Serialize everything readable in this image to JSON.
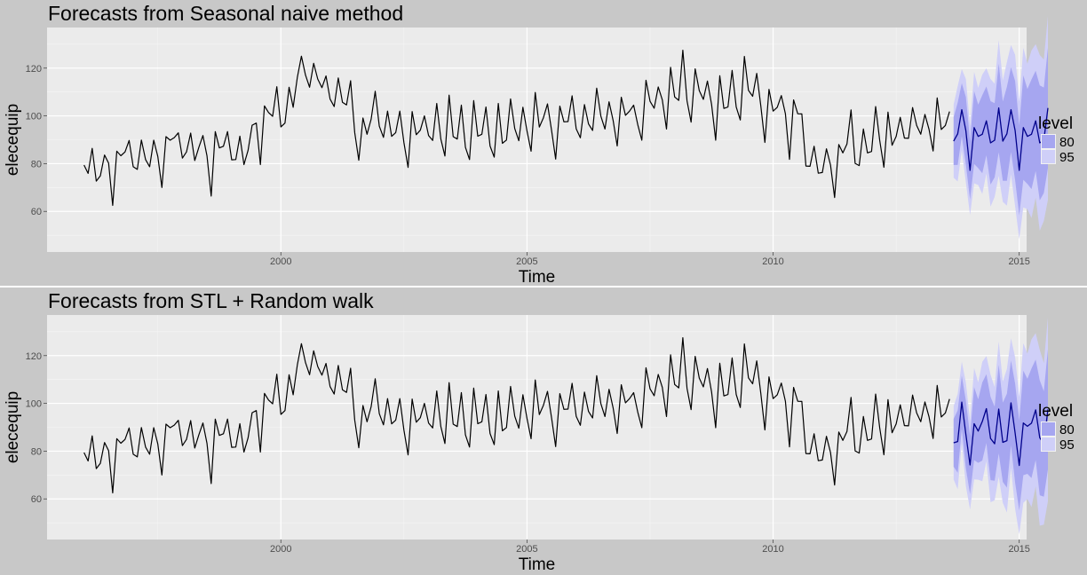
{
  "colors": {
    "background": "#c8c8c8",
    "panel": "#ebebeb",
    "grid": "#ffffff",
    "series": "#000000",
    "forecast": "#00008b",
    "band80": "#a6a6f0",
    "band95": "#cfcff8",
    "divider": "#ffffff"
  },
  "chart_data": [
    {
      "type": "line",
      "title": "Forecasts from Seasonal naive method",
      "xlabel": "Time",
      "ylabel": "elecequip",
      "xlim": [
        1995.25,
        2015.15
      ],
      "ylim": [
        43,
        137
      ],
      "xticks": [
        2000,
        2005,
        2010,
        2015
      ],
      "yticks": [
        60,
        80,
        100,
        120
      ],
      "grid": true,
      "legend": {
        "title": "level",
        "placement": "right",
        "entries": [
          {
            "label": "80",
            "color": "#a6a6f0"
          },
          {
            "label": "95",
            "color": "#cfcff8"
          }
        ]
      },
      "series_start": 1996.0,
      "frequency": 12,
      "series": [
        {
          "name": "",
          "values": [
            79.4,
            75.9,
            86.4,
            72.7,
            74.9,
            83.6,
            80.2,
            62.5,
            85.2,
            83.3,
            84.9,
            89.7,
            78.7,
            77.6,
            89.9,
            81.7,
            78.7,
            89.8,
            83.0,
            70.0,
            91.3,
            89.8,
            90.9,
            92.9,
            82.3,
            84.9,
            92.8,
            81.3,
            86.8,
            91.8,
            83.2,
            66.4,
            93.4,
            86.6,
            87.3,
            93.4,
            81.6,
            81.7,
            91.5,
            79.6,
            85.5,
            96.1,
            97.0,
            79.6,
            104.2,
            101.4,
            99.8,
            112.2,
            95.4,
            97.0,
            112.0,
            103.6,
            116.1,
            125.0,
            117.1,
            112.0,
            122.0,
            115.4,
            111.8,
            116.7,
            107.0,
            103.9,
            115.9,
            105.7,
            104.6,
            114.7,
            93.1,
            81.4,
            99.1,
            92.3,
            98.6,
            110.3,
            95.7,
            91.0,
            102.0,
            91.4,
            93.0,
            102.0,
            88.9,
            78.4,
            101.8,
            92.1,
            94.0,
            100.0,
            91.8,
            89.7,
            105.2,
            90.3,
            83.2,
            108.7,
            91.3,
            90.3,
            104.5,
            86.8,
            81.7,
            106.4,
            91.5,
            92.3,
            103.7,
            87.4,
            82.7,
            105.2,
            88.5,
            89.9,
            107.1,
            94.7,
            89.6,
            103.6,
            93.7,
            85.2,
            109.8,
            95.3,
            99.2,
            105.0,
            93.9,
            81.9,
            104.1,
            97.5,
            97.6,
            108.4,
            94.6,
            90.8,
            104.7,
            96.6,
            93.9,
            111.6,
            99.9,
            94.5,
            105.9,
            98.1,
            87.4,
            107.8,
            100.2,
            102.0,
            104.5,
            96.4,
            89.8,
            114.9,
            106.1,
            103.2,
            112.1,
            106.7,
            94.5,
            120.3,
            107.9,
            106.5,
            127.5,
            106.3,
            97.4,
            119.7,
            110.6,
            106.9,
            114.6,
            104.7,
            89.8,
            116.8,
            103.1,
            103.7,
            119.0,
            103.7,
            98.3,
            124.9,
            110.7,
            108.2,
            117.8,
            104.2,
            88.9,
            111.1,
            102.0,
            103.6,
            108.5,
            100.9,
            81.8,
            106.7,
            100.9,
            100.8,
            79.0,
            78.9,
            87.3,
            76.0,
            76.3,
            86.2,
            79.4,
            65.8,
            88.0,
            84.5,
            88.2,
            102.5,
            80.1,
            79.2,
            94.5,
            84.5,
            85.1,
            103.9,
            89.7,
            78.5,
            101.6,
            87.7,
            91.4,
            99.4,
            90.7,
            90.6,
            103.5,
            96.0,
            92.3,
            100.6,
            94.4,
            85.3,
            107.5,
            94.3,
            96.0,
            101.8
          ]
        },
        {
          "name": "forecast",
          "values": [
            89.4,
            92.5,
            102.6,
            93.8,
            77.2,
            95.1,
            91.4,
            92.3,
            97.9,
            88.7,
            89.8,
            103.3,
            89.4,
            92.5,
            102.6,
            93.8,
            77.2,
            95.1,
            91.4,
            92.3,
            97.9,
            88.7,
            89.8,
            103.3
          ]
        }
      ]
    },
    {
      "type": "line",
      "title": "Forecasts from STL +  Random walk",
      "xlabel": "Time",
      "ylabel": "elecequip",
      "xlim": [
        1995.25,
        2015.15
      ],
      "ylim": [
        43,
        137
      ],
      "xticks": [
        2000,
        2005,
        2010,
        2015
      ],
      "yticks": [
        60,
        80,
        100,
        120
      ],
      "grid": true,
      "legend": {
        "title": "level",
        "placement": "right",
        "entries": [
          {
            "label": "80",
            "color": "#a6a6f0"
          },
          {
            "label": "95",
            "color": "#cfcff8"
          }
        ]
      },
      "series_start": 1996.0,
      "frequency": 12,
      "series": [
        {
          "name": "",
          "values": [
            79.4,
            75.9,
            86.4,
            72.7,
            74.9,
            83.6,
            80.2,
            62.5,
            85.2,
            83.3,
            84.9,
            89.7,
            78.7,
            77.6,
            89.9,
            81.7,
            78.7,
            89.8,
            83.0,
            70.0,
            91.3,
            89.8,
            90.9,
            92.9,
            82.3,
            84.9,
            92.8,
            81.3,
            86.8,
            91.8,
            83.2,
            66.4,
            93.4,
            86.6,
            87.3,
            93.4,
            81.6,
            81.7,
            91.5,
            79.6,
            85.5,
            96.1,
            97.0,
            79.6,
            104.2,
            101.4,
            99.8,
            112.2,
            95.4,
            97.0,
            112.0,
            103.6,
            116.1,
            125.0,
            117.1,
            112.0,
            122.0,
            115.4,
            111.8,
            116.7,
            107.0,
            103.9,
            115.9,
            105.7,
            104.6,
            114.7,
            93.1,
            81.4,
            99.1,
            92.3,
            98.6,
            110.3,
            95.7,
            91.0,
            102.0,
            91.4,
            93.0,
            102.0,
            88.9,
            78.4,
            101.8,
            92.1,
            94.0,
            100.0,
            91.8,
            89.7,
            105.2,
            90.3,
            83.2,
            108.7,
            91.3,
            90.3,
            104.5,
            86.8,
            81.7,
            106.4,
            91.5,
            92.3,
            103.7,
            87.4,
            82.7,
            105.2,
            88.5,
            89.9,
            107.1,
            94.7,
            89.6,
            103.6,
            93.7,
            85.2,
            109.8,
            95.3,
            99.2,
            105.0,
            93.9,
            81.9,
            104.1,
            97.5,
            97.6,
            108.4,
            94.6,
            90.8,
            104.7,
            96.6,
            93.9,
            111.6,
            99.9,
            94.5,
            105.9,
            98.1,
            87.4,
            107.8,
            100.2,
            102.0,
            104.5,
            96.4,
            89.8,
            114.9,
            106.1,
            103.2,
            112.1,
            106.7,
            94.5,
            120.3,
            107.9,
            106.5,
            127.5,
            106.3,
            97.4,
            119.7,
            110.6,
            106.9,
            114.6,
            104.7,
            89.8,
            116.8,
            103.1,
            103.7,
            119.0,
            103.7,
            98.3,
            124.9,
            110.7,
            108.2,
            117.8,
            104.2,
            88.9,
            111.1,
            102.0,
            103.6,
            108.5,
            100.9,
            81.8,
            106.7,
            100.9,
            100.8,
            79.0,
            78.9,
            87.3,
            76.0,
            76.3,
            86.2,
            79.4,
            65.8,
            88.0,
            84.5,
            88.2,
            102.5,
            80.1,
            79.2,
            94.5,
            84.5,
            85.1,
            103.9,
            89.7,
            78.5,
            101.6,
            87.7,
            91.4,
            99.4,
            90.7,
            90.6,
            103.5,
            96.0,
            92.3,
            100.6,
            94.4,
            85.3,
            107.5,
            94.3,
            96.0,
            101.8
          ]
        },
        {
          "name": "forecast",
          "values": [
            83.5,
            84.0,
            100.5,
            87.0,
            74.2,
            91.5,
            88.4,
            92.4,
            97.8,
            85.3,
            83.1,
            97.6,
            83.7,
            84.4,
            100.2,
            87.5,
            74.0,
            91.8,
            90.4,
            91.7,
            97.3,
            85.6,
            83.0,
            97.5
          ]
        }
      ]
    }
  ]
}
